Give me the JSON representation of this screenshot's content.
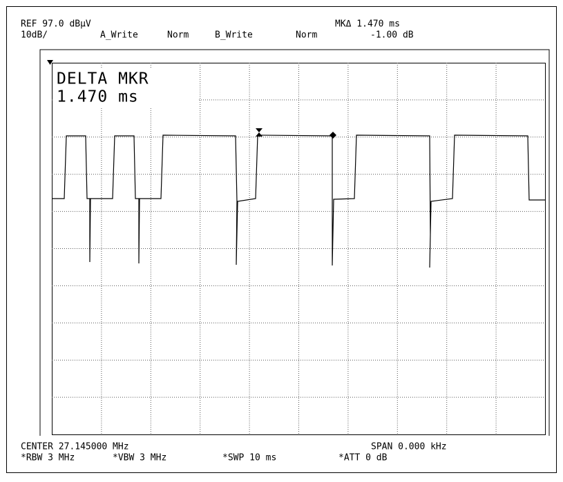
{
  "header": {
    "ref": "REF 97.0 dBµV",
    "scale": "10dB/",
    "trace_a": "A_Write",
    "trace_a_mode": "Norm",
    "trace_b": "B_Write",
    "trace_b_mode": "Norm",
    "marker_time": "MKΔ 1.470 ms",
    "marker_level": "-1.00 dB"
  },
  "marker_box": {
    "title": "DELTA MKR",
    "value": "1.470 ms"
  },
  "footer": {
    "center": "CENTER 27.145000 MHz",
    "span": "SPAN 0.000 kHz",
    "rbw": "*RBW 3 MHz",
    "vbw": "*VBW 3 MHz",
    "swp": "*SWP 10 ms",
    "att": "*ATT 0 dB"
  }
}
